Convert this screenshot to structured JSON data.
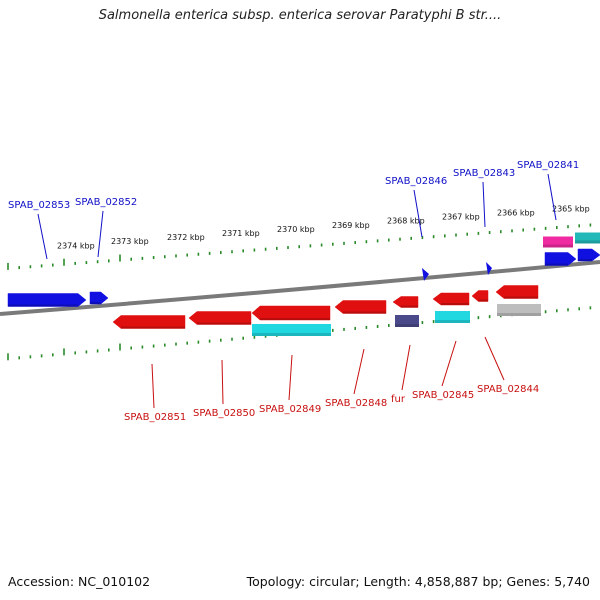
{
  "title": "Salmonella enterica subsp. enterica serovar Paratyphi B str....",
  "footer": {
    "accession": "Accession: NC_010102",
    "summary": "Topology: circular; Length: 4,858,887 bp; Genes: 5,740"
  },
  "colors": {
    "backbone": "#7a7a7a",
    "tick": "#2a8a2a",
    "forward_gene": "#1010e0",
    "reverse_gene": "#e01010",
    "forward_label": "#1010c8",
    "reverse_label": "#c81010",
    "cds_cyan": "#22d8e0",
    "cds_grey": "#bdbdbd",
    "cds_slate": "#4a4a8a",
    "cds_pink": "#f02aa0",
    "cds_teal": "#22b8b8"
  },
  "kbp_ticks": [
    "2374 kbp",
    "2373 kbp",
    "2372 kbp",
    "2371 kbp",
    "2370 kbp",
    "2369 kbp",
    "2368 kbp",
    "2367 kbp",
    "2366 kbp",
    "2365 kbp"
  ],
  "forward_labels": [
    "SPAB_02853",
    "SPAB_02852",
    "SPAB_02846",
    "SPAB_02843",
    "SPAB_02841"
  ],
  "reverse_labels": [
    "SPAB_02851",
    "SPAB_02850",
    "SPAB_02849",
    "SPAB_02848",
    "fur",
    "SPAB_02845",
    "SPAB_02844"
  ]
}
